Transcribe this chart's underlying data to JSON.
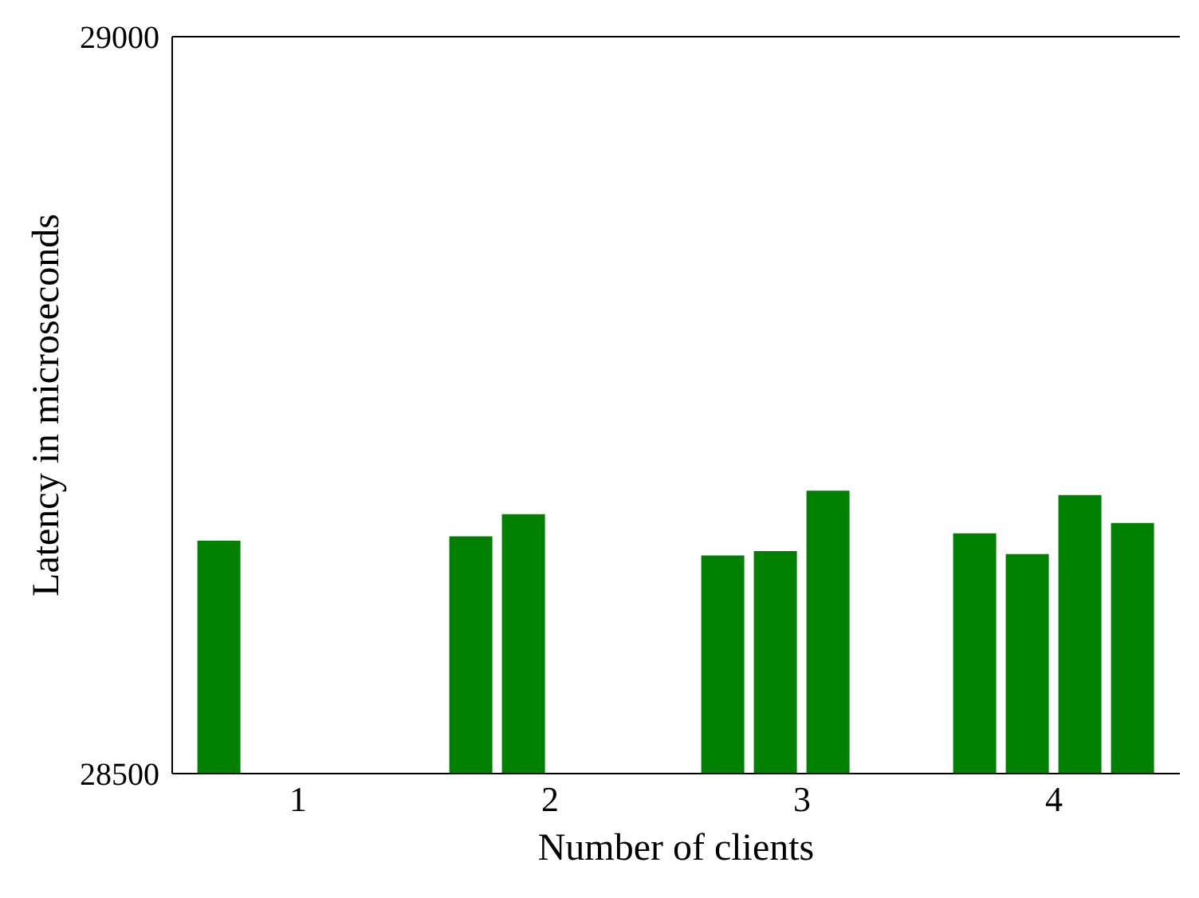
{
  "chart_data": {
    "type": "bar",
    "xlabel": "Number of clients",
    "ylabel": "Latency in microseconds",
    "categories": [
      "1",
      "2",
      "3",
      "4"
    ],
    "series": [
      {
        "color": "#008000",
        "values": [
          28658,
          28661,
          28648,
          28663
        ]
      },
      {
        "color": "#008000",
        "values": [
          null,
          28676,
          28651,
          28649
        ]
      },
      {
        "color": "#008000",
        "values": [
          null,
          null,
          28692,
          28689
        ]
      },
      {
        "color": "#008000",
        "values": [
          null,
          null,
          null,
          28670
        ]
      }
    ],
    "ylim": [
      28500,
      29000
    ],
    "yticks": [
      28500,
      29000
    ],
    "legend": false,
    "grid": false
  }
}
